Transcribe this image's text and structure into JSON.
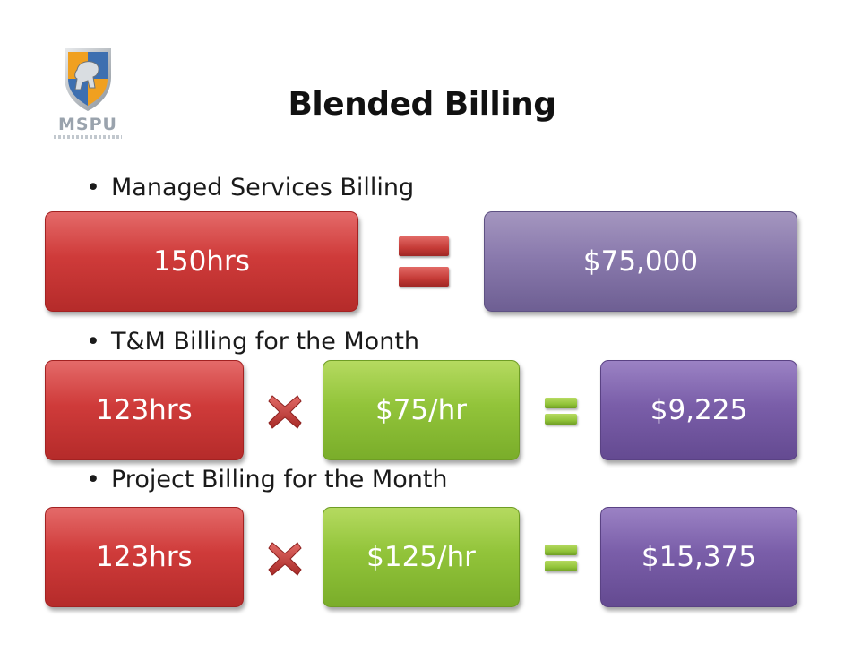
{
  "logo": {
    "text": "MSPU"
  },
  "title": "Blended Billing",
  "rows": [
    {
      "heading": "Managed Services Billing",
      "hours": "150hrs",
      "total": "$75,000"
    },
    {
      "heading": "T&M Billing for the Month",
      "hours": "123hrs",
      "rate": "$75/hr",
      "total": "$9,225"
    },
    {
      "heading": "Project Billing for the Month",
      "hours": "123hrs",
      "rate": "$125/hr",
      "total": "$15,375"
    }
  ],
  "colors": {
    "red": "#c43a36",
    "green": "#92c43a",
    "purple": "#7a5ea9",
    "logo_orange": "#f0a020",
    "logo_blue": "#3d6fb0"
  }
}
